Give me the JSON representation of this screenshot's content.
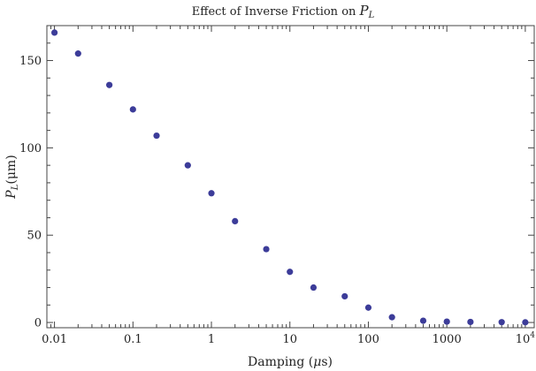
{
  "chart_data": {
    "type": "scatter",
    "title_prefix": "Effect of Inverse Friction on ",
    "title_var": "P",
    "title_sub": "L",
    "xlabel_prefix": "Damping (",
    "xlabel_mu": "μ",
    "xlabel_suffix": "s)",
    "ylabel_var": "P",
    "ylabel_sub": "L",
    "ylabel_unit": "(μm)",
    "x_scale": "log",
    "xlim": [
      0.008,
      13000
    ],
    "ylim": [
      -3,
      170
    ],
    "x_ticks": [
      {
        "value": 0.01,
        "label": "0.01"
      },
      {
        "value": 0.1,
        "label": "0.1"
      },
      {
        "value": 1,
        "label": "1"
      },
      {
        "value": 10,
        "label": "10"
      },
      {
        "value": 100,
        "label": "100"
      },
      {
        "value": 1000,
        "label": "1000"
      },
      {
        "value": 10000,
        "label_base": "10",
        "label_exp": "4"
      }
    ],
    "y_ticks": [
      {
        "value": 0,
        "label": "0"
      },
      {
        "value": 50,
        "label": "50"
      },
      {
        "value": 100,
        "label": "100"
      },
      {
        "value": 150,
        "label": "150"
      }
    ],
    "grid": false,
    "color": "#3c3c99",
    "points": [
      {
        "x": 0.01,
        "y": 166
      },
      {
        "x": 0.02,
        "y": 154
      },
      {
        "x": 0.05,
        "y": 136
      },
      {
        "x": 0.1,
        "y": 122
      },
      {
        "x": 0.2,
        "y": 107
      },
      {
        "x": 0.5,
        "y": 90
      },
      {
        "x": 1,
        "y": 74
      },
      {
        "x": 2,
        "y": 58
      },
      {
        "x": 5,
        "y": 42
      },
      {
        "x": 10,
        "y": 29
      },
      {
        "x": 20,
        "y": 20
      },
      {
        "x": 50,
        "y": 15
      },
      {
        "x": 100,
        "y": 8.5
      },
      {
        "x": 200,
        "y": 3
      },
      {
        "x": 500,
        "y": 1
      },
      {
        "x": 1000,
        "y": 0.5
      },
      {
        "x": 2000,
        "y": 0.3
      },
      {
        "x": 5000,
        "y": 0.2
      },
      {
        "x": 10000,
        "y": 0.1
      }
    ]
  }
}
